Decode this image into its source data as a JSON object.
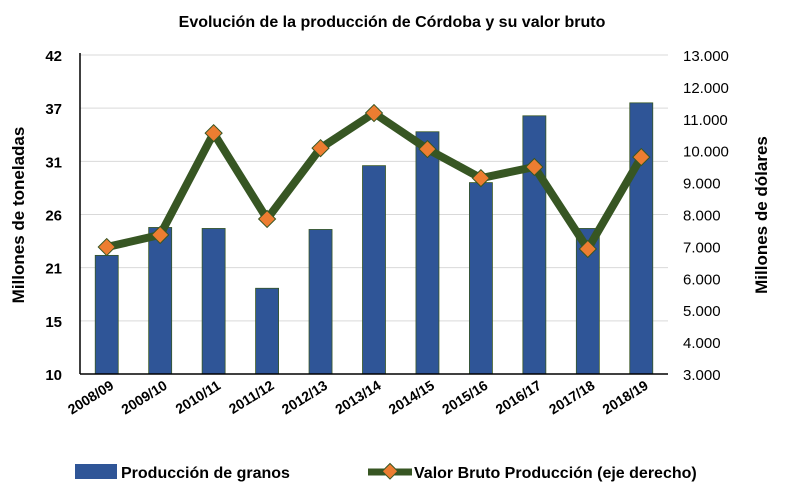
{
  "chart_data": {
    "type": "bar+line",
    "title": "Evolución de la producción de Córdoba y su valor bruto",
    "categories": [
      "2008/09",
      "2009/10",
      "2010/11",
      "2011/12",
      "2012/13",
      "2013/14",
      "2014/15",
      "2015/16",
      "2016/17",
      "2017/18",
      "2018/19"
    ],
    "series": [
      {
        "name": "Producción de granos",
        "type": "bar",
        "axis": "left",
        "color": "#2F5597",
        "values": [
          21.9,
          24.7,
          24.6,
          18.6,
          24.5,
          30.9,
          34.3,
          29.2,
          35.9,
          24.6,
          37.2
        ]
      },
      {
        "name": "Valor Bruto Producción (eje derecho)",
        "type": "line",
        "axis": "right",
        "color": "#375623",
        "marker_color": "#ED7D31",
        "values": [
          6980,
          7360,
          10550,
          7860,
          10080,
          11180,
          10050,
          9140,
          9490,
          6920,
          9800
        ]
      }
    ],
    "ylabel": "Millones de toneladas",
    "y2label": "Millones de dólares",
    "ylim": [
      10,
      42
    ],
    "y2lim": [
      3000,
      13000
    ],
    "yticks": [
      "10",
      "15",
      "21",
      "26",
      "31",
      "37",
      "42"
    ],
    "y2ticks": [
      "3.000",
      "4.000",
      "5.000",
      "6.000",
      "7.000",
      "8.000",
      "9.000",
      "10.000",
      "11.000",
      "12.000",
      "13.000"
    ],
    "grid": true,
    "legend": "bottom"
  }
}
